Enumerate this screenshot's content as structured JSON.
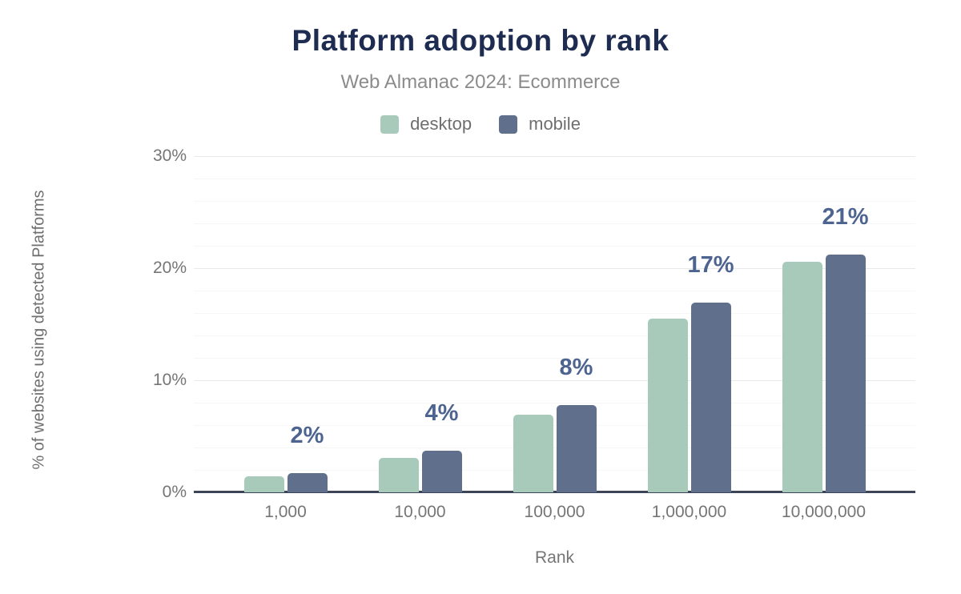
{
  "chart_data": {
    "type": "bar",
    "title": "Platform adoption by rank",
    "subtitle": "Web Almanac 2024: Ecommerce",
    "xlabel": "Rank",
    "ylabel": "% of websites using detected Platforms",
    "categories": [
      "1,000",
      "10,000",
      "100,000",
      "1,000,000",
      "10,000,000"
    ],
    "series": [
      {
        "name": "desktop",
        "color": "#a7cabb",
        "values": [
          1.4,
          3.1,
          6.9,
          15.5,
          20.6
        ]
      },
      {
        "name": "mobile",
        "color": "#60708c",
        "values": [
          1.7,
          3.7,
          7.8,
          16.9,
          21.2
        ]
      }
    ],
    "annotations": [
      "2%",
      "4%",
      "8%",
      "17%",
      "21%"
    ],
    "y_axis": {
      "min": 0,
      "max": 30,
      "major_tick_step": 10,
      "minor_grid_step": 2,
      "tick_labels": [
        "0%",
        "10%",
        "20%",
        "30%"
      ]
    },
    "legend_position": "top",
    "grid": true
  },
  "colors": {
    "title": "#1e2c52",
    "subtitle": "#8b8b8b",
    "axis_text": "#757575",
    "axis_line": "#3b4557",
    "grid_major": "#e9e9e9",
    "grid_minor": "#f6f6f6",
    "annotation": "#4e6490",
    "background": "#ffffff"
  }
}
